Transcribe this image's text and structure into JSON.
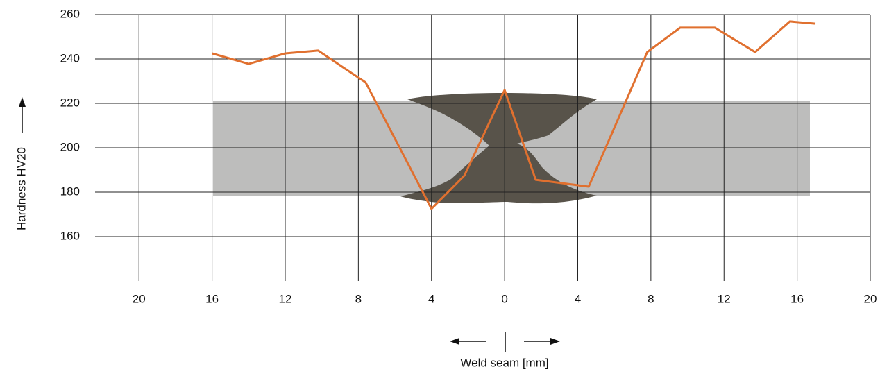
{
  "chart_data": {
    "type": "line",
    "y_label": "Hardness HV20",
    "x_label": "Weld seam [mm]",
    "xlim": [
      -22.4,
      20
    ],
    "ylim": [
      140,
      260
    ],
    "xticks": [
      {
        "value": -20,
        "label": "20"
      },
      {
        "value": -16,
        "label": "16"
      },
      {
        "value": -12,
        "label": "12"
      },
      {
        "value": -8,
        "label": "8"
      },
      {
        "value": -4,
        "label": "4"
      },
      0,
      4,
      8,
      12,
      16,
      20
    ],
    "yticks": [
      160,
      180,
      200,
      220,
      240,
      260
    ],
    "grid": true,
    "series": [
      {
        "color": "#e0702f",
        "x": [
          -16,
          -14,
          -12,
          -10.2,
          -7.6,
          -4,
          -2.2,
          0,
          1.7,
          4.6,
          7.8,
          9.6,
          11.5,
          13.7,
          15.6,
          17
        ],
        "values": [
          242.5,
          237.8,
          242.5,
          243.8,
          229.4,
          172.5,
          187.5,
          226,
          185.6,
          182.5,
          243.1,
          254.1,
          254.1,
          243.1,
          256.9,
          255.9
        ]
      }
    ]
  }
}
